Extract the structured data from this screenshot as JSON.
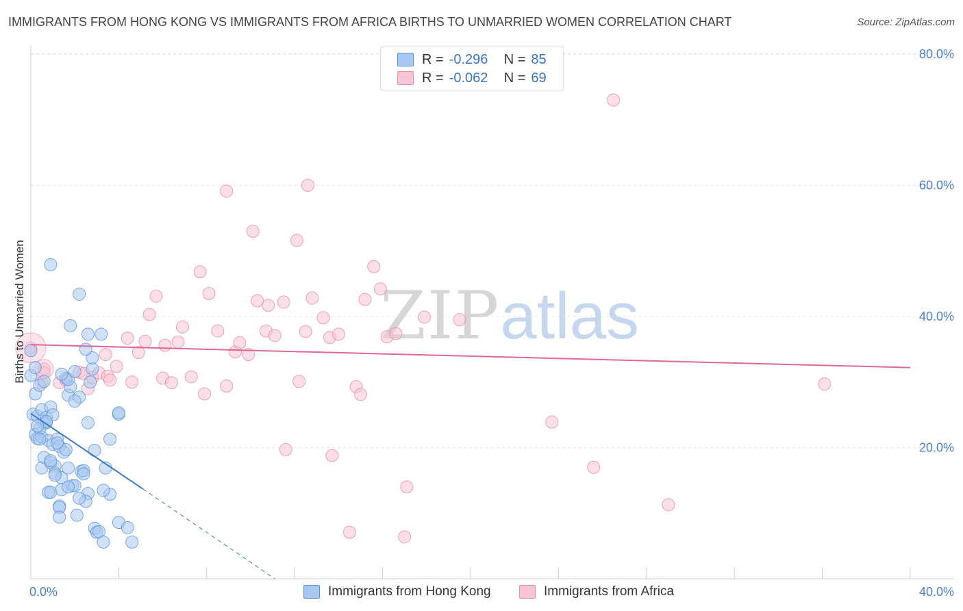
{
  "title": "IMMIGRANTS FROM HONG KONG VS IMMIGRANTS FROM AFRICA BIRTHS TO UNMARRIED WOMEN CORRELATION CHART",
  "source": "Source: ZipAtlas.com",
  "watermark": {
    "zip": "ZIP",
    "atlas": "atlas"
  },
  "legend": {
    "r_label": "R =",
    "n_label": "N =",
    "rows": [
      {
        "r": "-0.296",
        "n": "85"
      },
      {
        "r": "-0.062",
        "n": "69"
      }
    ]
  },
  "bottom_legend": [
    "Immigrants from Hong Kong",
    "Immigrants from Africa"
  ],
  "colors": {
    "blue_fill": "#a9c8f0",
    "blue_stroke": "#5b93d8",
    "blue_line": "#3a78cc",
    "pink_fill": "#f7c4d3",
    "pink_stroke": "#e88aa8",
    "pink_line": "#e0679a",
    "grid": "#e3e3e3",
    "tick_text": "#4a7fd0"
  },
  "chart_data": {
    "type": "scatter",
    "title": "IMMIGRANTS FROM HONG KONG VS IMMIGRANTS FROM AFRICA BIRTHS TO UNMARRIED WOMEN CORRELATION CHART",
    "xlabel": "",
    "ylabel": "Births to Unmarried Women",
    "xlim": [
      0,
      40
    ],
    "ylim": [
      0,
      81
    ],
    "x_tick_labels": [
      "0.0%",
      "40.0%"
    ],
    "y_ticks": [
      20,
      40,
      60,
      80
    ],
    "y_tick_labels": [
      "20.0%",
      "40.0%",
      "60.0%",
      "80.0%"
    ],
    "grid": true,
    "legend_position": "top-center",
    "series": [
      {
        "name": "Immigrants from Hong Kong",
        "r": -0.296,
        "n": 85,
        "trend": {
          "x0": 0,
          "y0": 25.2,
          "x1": 5.1,
          "y1": 13.7,
          "dashed_to_x": 11.1,
          "dashed_to_y": 0.0
        },
        "points": [
          [
            0.0,
            34.8
          ],
          [
            0.0,
            31.0
          ],
          [
            0.2,
            28.2
          ],
          [
            0.1,
            25.1
          ],
          [
            0.3,
            24.8
          ],
          [
            0.4,
            29.5
          ],
          [
            0.5,
            25.8
          ],
          [
            0.2,
            22.0
          ],
          [
            0.3,
            21.4
          ],
          [
            0.5,
            21.6
          ],
          [
            0.6,
            23.7
          ],
          [
            0.7,
            24.6
          ],
          [
            0.7,
            23.8
          ],
          [
            0.8,
            21.1
          ],
          [
            0.9,
            26.2
          ],
          [
            1.0,
            25.0
          ],
          [
            0.4,
            22.9
          ],
          [
            0.6,
            18.5
          ],
          [
            0.5,
            16.9
          ],
          [
            0.9,
            17.7
          ],
          [
            1.1,
            17.2
          ],
          [
            1.0,
            20.5
          ],
          [
            1.2,
            21.3
          ],
          [
            1.3,
            20.2
          ],
          [
            1.5,
            19.3
          ],
          [
            1.6,
            19.7
          ],
          [
            1.1,
            16.1
          ],
          [
            1.4,
            15.4
          ],
          [
            0.8,
            13.2
          ],
          [
            0.9,
            13.2
          ],
          [
            1.4,
            13.6
          ],
          [
            1.7,
            16.9
          ],
          [
            1.9,
            14.2
          ],
          [
            2.0,
            14.2
          ],
          [
            2.3,
            16.4
          ],
          [
            2.4,
            16.5
          ],
          [
            2.4,
            16.0
          ],
          [
            2.6,
            13.0
          ],
          [
            2.5,
            11.8
          ],
          [
            2.2,
            12.3
          ],
          [
            1.3,
            11.1
          ],
          [
            1.3,
            10.9
          ],
          [
            1.3,
            9.4
          ],
          [
            2.1,
            9.7
          ],
          [
            2.9,
            7.7
          ],
          [
            3.0,
            7.1
          ],
          [
            3.1,
            7.2
          ],
          [
            3.3,
            5.6
          ],
          [
            4.0,
            8.6
          ],
          [
            4.4,
            7.8
          ],
          [
            4.6,
            5.6
          ],
          [
            2.9,
            19.6
          ],
          [
            3.6,
            21.3
          ],
          [
            3.4,
            16.9
          ],
          [
            3.6,
            12.9
          ],
          [
            3.3,
            13.5
          ],
          [
            2.6,
            23.8
          ],
          [
            4.0,
            25.1
          ],
          [
            4.0,
            25.3
          ],
          [
            1.7,
            28.0
          ],
          [
            1.8,
            29.3
          ],
          [
            1.6,
            30.6
          ],
          [
            1.7,
            30.4
          ],
          [
            2.0,
            31.6
          ],
          [
            1.4,
            31.2
          ],
          [
            2.2,
            27.7
          ],
          [
            2.0,
            27.1
          ],
          [
            2.7,
            30.0
          ],
          [
            2.8,
            32.0
          ],
          [
            2.8,
            33.7
          ],
          [
            2.5,
            35.0
          ],
          [
            2.6,
            37.3
          ],
          [
            3.2,
            37.3
          ],
          [
            1.8,
            38.6
          ],
          [
            2.2,
            43.4
          ],
          [
            0.9,
            47.9
          ],
          [
            0.2,
            32.2
          ],
          [
            0.6,
            30.1
          ],
          [
            0.7,
            24.0
          ],
          [
            1.2,
            20.7
          ],
          [
            0.9,
            18.0
          ],
          [
            1.1,
            15.8
          ],
          [
            1.7,
            14.0
          ],
          [
            0.4,
            21.3
          ],
          [
            0.3,
            23.3
          ]
        ]
      },
      {
        "name": "Immigrants from Africa",
        "r": -0.062,
        "n": 69,
        "trend": {
          "x0": 0,
          "y0": 35.7,
          "x1": 40,
          "y1": 32.2
        },
        "points": [
          [
            0.0,
            35.2
          ],
          [
            0.6,
            32.0
          ],
          [
            0.6,
            31.4
          ],
          [
            0.5,
            29.9
          ],
          [
            1.3,
            29.9
          ],
          [
            1.6,
            30.3
          ],
          [
            2.2,
            31.5
          ],
          [
            2.4,
            31.3
          ],
          [
            2.6,
            29.0
          ],
          [
            2.8,
            30.7
          ],
          [
            3.1,
            31.4
          ],
          [
            3.4,
            34.2
          ],
          [
            3.5,
            30.9
          ],
          [
            3.6,
            30.3
          ],
          [
            3.9,
            32.4
          ],
          [
            4.4,
            36.7
          ],
          [
            4.6,
            30.0
          ],
          [
            4.9,
            34.5
          ],
          [
            5.2,
            36.2
          ],
          [
            5.4,
            40.3
          ],
          [
            5.7,
            43.1
          ],
          [
            6.0,
            30.6
          ],
          [
            6.1,
            35.6
          ],
          [
            6.4,
            29.9
          ],
          [
            6.7,
            36.1
          ],
          [
            6.9,
            38.4
          ],
          [
            7.3,
            30.8
          ],
          [
            7.7,
            46.8
          ],
          [
            7.9,
            28.2
          ],
          [
            8.1,
            43.5
          ],
          [
            8.5,
            37.8
          ],
          [
            8.9,
            59.1
          ],
          [
            8.9,
            29.4
          ],
          [
            9.3,
            34.6
          ],
          [
            9.5,
            36.0
          ],
          [
            9.9,
            34.2
          ],
          [
            10.1,
            53.0
          ],
          [
            10.3,
            42.4
          ],
          [
            10.7,
            37.8
          ],
          [
            10.8,
            41.7
          ],
          [
            11.1,
            37.1
          ],
          [
            11.5,
            42.2
          ],
          [
            11.6,
            19.7
          ],
          [
            12.1,
            51.6
          ],
          [
            12.2,
            30.1
          ],
          [
            12.5,
            37.7
          ],
          [
            12.6,
            60.0
          ],
          [
            12.8,
            42.8
          ],
          [
            13.3,
            39.8
          ],
          [
            13.6,
            36.8
          ],
          [
            13.7,
            18.8
          ],
          [
            14.0,
            37.3
          ],
          [
            14.5,
            7.1
          ],
          [
            14.8,
            29.3
          ],
          [
            15.0,
            28.1
          ],
          [
            15.2,
            42.6
          ],
          [
            15.6,
            47.6
          ],
          [
            15.9,
            44.2
          ],
          [
            16.2,
            36.9
          ],
          [
            16.6,
            37.4
          ],
          [
            17.0,
            6.4
          ],
          [
            17.1,
            14.0
          ],
          [
            17.9,
            39.9
          ],
          [
            19.5,
            39.5
          ],
          [
            23.7,
            23.9
          ],
          [
            25.6,
            17.0
          ],
          [
            26.5,
            73.0
          ],
          [
            29.0,
            11.3
          ],
          [
            36.1,
            29.7
          ]
        ]
      }
    ]
  }
}
